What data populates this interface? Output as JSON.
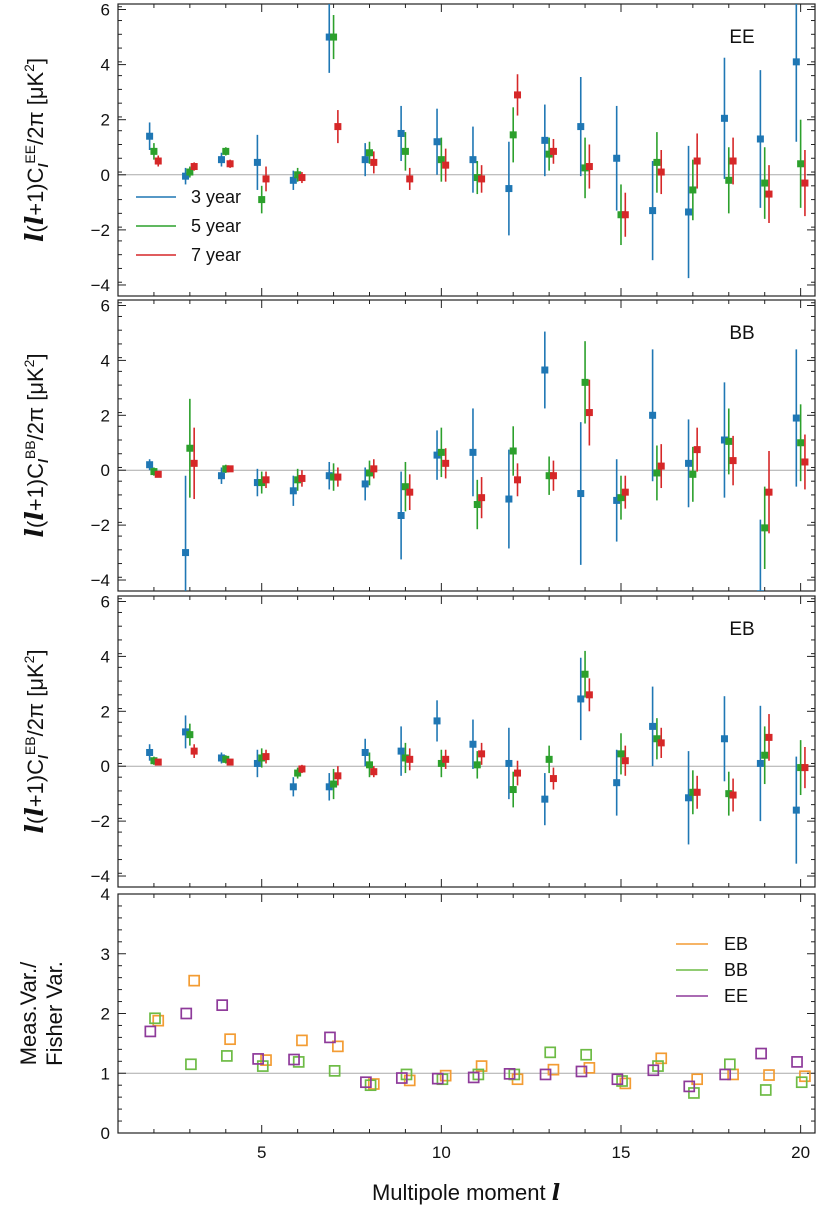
{
  "colors": {
    "y3": "#1f77b4",
    "y5": "#2ca02c",
    "y7": "#d62728",
    "EB": "#f39c33",
    "BB": "#6dbb45",
    "EE": "#8e3a9a",
    "zero_line": "#aaaaaa"
  },
  "xlabel_text": "Multipole moment",
  "xlabel_symbol": "l",
  "chart_data": [
    {
      "type": "scatter",
      "panel": "EE",
      "ylabel_parts": [
        "l",
        "(",
        "l",
        "+1)C",
        "l",
        "EE",
        "/2π [μK",
        "2",
        "]"
      ],
      "xlim": [
        1,
        20.4
      ],
      "ylim": [
        -4.4,
        6.2
      ],
      "yticks": [
        -4,
        -2,
        0,
        2,
        4,
        6
      ],
      "xticks": [
        5,
        10,
        15,
        20
      ],
      "grid": false,
      "legend_placement": "lower-left",
      "series": [
        {
          "name": "3 year",
          "color_key": "y3",
          "x": [
            2,
            3,
            4,
            5,
            6,
            7,
            8,
            9,
            10,
            11,
            12,
            13,
            14,
            15,
            16,
            17,
            18,
            19,
            20
          ],
          "y": [
            1.4,
            -0.05,
            0.55,
            0.45,
            -0.2,
            5.0,
            0.55,
            1.5,
            1.2,
            0.55,
            -0.5,
            1.25,
            1.75,
            0.6,
            -1.3,
            -1.35,
            2.05,
            1.3,
            4.1
          ],
          "err": [
            0.5,
            0.3,
            0.25,
            1.0,
            0.35,
            1.3,
            0.6,
            1.0,
            1.2,
            1.2,
            1.7,
            1.3,
            1.8,
            1.9,
            1.8,
            2.4,
            2.2,
            2.5,
            2.9
          ]
        },
        {
          "name": "5 year",
          "color_key": "y5",
          "x": [
            2,
            3,
            4,
            5,
            6,
            7,
            8,
            9,
            10,
            11,
            12,
            13,
            14,
            15,
            16,
            17,
            18,
            19,
            20
          ],
          "y": [
            0.85,
            0.1,
            0.85,
            -0.9,
            0.0,
            5.0,
            0.8,
            0.85,
            0.55,
            -0.1,
            1.45,
            0.75,
            0.25,
            -1.45,
            0.45,
            -0.55,
            -0.2,
            -0.3,
            0.4
          ],
          "err": [
            0.3,
            0.2,
            0.15,
            0.5,
            0.25,
            0.8,
            0.4,
            0.7,
            0.8,
            0.6,
            1.0,
            0.6,
            1.1,
            1.1,
            1.1,
            1.1,
            1.2,
            1.3,
            1.6
          ]
        },
        {
          "name": "7 year",
          "color_key": "y7",
          "x": [
            2,
            3,
            4,
            5,
            6,
            7,
            8,
            9,
            10,
            11,
            12,
            13,
            14,
            15,
            16,
            17,
            18,
            19,
            20
          ],
          "y": [
            0.5,
            0.3,
            0.4,
            -0.15,
            -0.1,
            1.75,
            0.45,
            -0.15,
            0.35,
            -0.15,
            2.9,
            0.85,
            0.3,
            -1.45,
            0.1,
            0.5,
            0.5,
            -0.7,
            -0.3
          ],
          "err": [
            0.2,
            0.15,
            0.15,
            0.45,
            0.2,
            0.6,
            0.4,
            0.4,
            0.6,
            0.5,
            0.75,
            0.45,
            0.8,
            0.8,
            0.8,
            1.0,
            0.85,
            1.05,
            1.2
          ]
        }
      ],
      "panel_label": "EE"
    },
    {
      "type": "scatter",
      "panel": "BB",
      "ylabel_parts": [
        "l",
        "(",
        "l",
        "+1)C",
        "l",
        "BB",
        "/2π [μK",
        "2",
        "]"
      ],
      "xlim": [
        1,
        20.4
      ],
      "ylim": [
        -4.4,
        6.2
      ],
      "yticks": [
        -4,
        -2,
        0,
        2,
        4,
        6
      ],
      "xticks": [
        5,
        10,
        15,
        20
      ],
      "grid": false,
      "series": [
        {
          "name": "3 year",
          "color_key": "y3",
          "x": [
            2,
            3,
            4,
            5,
            6,
            7,
            8,
            9,
            10,
            11,
            12,
            13,
            14,
            15,
            16,
            17,
            18,
            19,
            20
          ],
          "y": [
            0.2,
            -3.0,
            -0.2,
            -0.45,
            -0.75,
            -0.2,
            -0.5,
            -1.65,
            0.55,
            0.65,
            -1.05,
            3.65,
            -0.85,
            -1.1,
            2.0,
            0.25,
            1.1,
            -4.5,
            1.9
          ],
          "err": [
            0.2,
            2.8,
            0.3,
            0.5,
            0.55,
            0.5,
            0.6,
            1.6,
            0.9,
            1.6,
            1.8,
            1.4,
            2.6,
            1.5,
            2.4,
            1.6,
            2.1,
            2.7,
            2.5
          ]
        },
        {
          "name": "5 year",
          "color_key": "y5",
          "x": [
            2,
            3,
            4,
            5,
            6,
            7,
            8,
            9,
            10,
            11,
            12,
            13,
            14,
            15,
            16,
            17,
            18,
            19,
            20
          ],
          "y": [
            -0.05,
            0.8,
            0.05,
            -0.45,
            -0.35,
            -0.25,
            -0.1,
            -0.6,
            0.65,
            -1.25,
            0.7,
            -0.2,
            3.2,
            -1.0,
            -0.1,
            -0.15,
            1.05,
            -2.1,
            1.0
          ],
          "err": [
            0.15,
            1.8,
            0.15,
            0.4,
            0.4,
            0.5,
            0.45,
            0.9,
            0.9,
            0.9,
            0.9,
            0.7,
            1.5,
            0.8,
            1.0,
            1.0,
            1.2,
            1.5,
            1.4
          ]
        },
        {
          "name": "7 year",
          "color_key": "y7",
          "x": [
            2,
            3,
            4,
            5,
            6,
            7,
            8,
            9,
            10,
            11,
            12,
            13,
            14,
            15,
            16,
            17,
            18,
            19,
            20
          ],
          "y": [
            -0.15,
            0.25,
            0.05,
            -0.35,
            -0.3,
            -0.25,
            0.05,
            -0.8,
            0.25,
            -1.0,
            -0.35,
            -0.2,
            2.1,
            -0.8,
            0.15,
            0.75,
            0.35,
            -0.8,
            0.3
          ],
          "err": [
            0.1,
            1.3,
            0.1,
            0.3,
            0.3,
            0.35,
            0.35,
            0.65,
            0.55,
            0.75,
            0.6,
            0.55,
            1.2,
            0.6,
            0.8,
            0.8,
            0.9,
            1.5,
            1.0
          ]
        }
      ],
      "panel_label": "BB"
    },
    {
      "type": "scatter",
      "panel": "EB",
      "ylabel_parts": [
        "l",
        "(",
        "l",
        "+1)C",
        "l",
        "EB",
        "/2π [μK",
        "2",
        "]"
      ],
      "xlim": [
        1,
        20.4
      ],
      "ylim": [
        -4.4,
        6.2
      ],
      "yticks": [
        -4,
        -2,
        0,
        2,
        4,
        6
      ],
      "xticks": [
        5,
        10,
        15,
        20
      ],
      "grid": false,
      "series": [
        {
          "name": "3 year",
          "color_key": "y3",
          "x": [
            2,
            3,
            4,
            5,
            6,
            7,
            8,
            9,
            10,
            11,
            12,
            13,
            14,
            15,
            16,
            17,
            18,
            19,
            20
          ],
          "y": [
            0.5,
            1.25,
            0.3,
            0.1,
            -0.75,
            -0.75,
            0.5,
            0.55,
            1.65,
            0.8,
            0.1,
            -1.2,
            2.45,
            -0.6,
            1.45,
            -1.15,
            1.0,
            0.1,
            -1.6
          ],
          "err": [
            0.3,
            0.6,
            0.2,
            0.5,
            0.35,
            0.5,
            0.5,
            0.9,
            0.75,
            0.9,
            1.3,
            0.95,
            1.5,
            1.2,
            1.45,
            1.7,
            1.55,
            2.1,
            1.95
          ]
        },
        {
          "name": "5 year",
          "color_key": "y5",
          "x": [
            2,
            3,
            4,
            5,
            6,
            7,
            8,
            9,
            10,
            11,
            12,
            13,
            14,
            15,
            16,
            17,
            18,
            19,
            20
          ],
          "y": [
            0.2,
            1.15,
            0.25,
            0.3,
            -0.25,
            -0.65,
            0.05,
            0.3,
            0.1,
            0.05,
            -0.85,
            0.25,
            3.35,
            0.45,
            1.0,
            -0.95,
            -1.0,
            0.4,
            -0.05
          ],
          "err": [
            0.15,
            0.4,
            0.15,
            0.35,
            0.2,
            0.55,
            0.45,
            0.55,
            0.5,
            0.5,
            0.65,
            0.5,
            0.85,
            0.75,
            0.75,
            0.8,
            0.8,
            1.05,
            1.0
          ]
        },
        {
          "name": "7 year",
          "color_key": "y7",
          "x": [
            2,
            3,
            4,
            5,
            6,
            7,
            8,
            9,
            10,
            11,
            12,
            13,
            14,
            15,
            16,
            17,
            18,
            19,
            20
          ],
          "y": [
            0.15,
            0.55,
            0.15,
            0.35,
            -0.1,
            -0.35,
            -0.2,
            0.25,
            0.25,
            0.45,
            -0.25,
            -0.45,
            2.6,
            0.2,
            0.85,
            -0.95,
            -1.05,
            1.05,
            -0.05
          ],
          "err": [
            0.1,
            0.25,
            0.1,
            0.25,
            0.15,
            0.35,
            0.2,
            0.4,
            0.35,
            0.4,
            0.45,
            0.4,
            0.6,
            0.55,
            0.55,
            0.6,
            0.6,
            0.85,
            0.75
          ]
        }
      ],
      "panel_label": "EB"
    },
    {
      "type": "scatter",
      "panel": "ratio",
      "ylabel_lines": [
        "Meas.Var./",
        "Fisher Var."
      ],
      "xlim": [
        1,
        20.4
      ],
      "ylim": [
        0,
        4
      ],
      "yticks": [
        0,
        1,
        2,
        3,
        4
      ],
      "xticks": [
        5,
        10,
        15,
        20
      ],
      "grid": false,
      "legend_placement": "top-right",
      "series": [
        {
          "name": "EB",
          "color_key": "EB",
          "x": [
            2,
            3,
            4,
            5,
            6,
            7,
            8,
            9,
            10,
            11,
            12,
            13,
            14,
            15,
            16,
            17,
            18,
            19,
            20
          ],
          "y": [
            1.88,
            2.55,
            1.57,
            1.22,
            1.55,
            1.45,
            0.82,
            0.88,
            0.96,
            1.12,
            0.9,
            1.06,
            1.09,
            0.83,
            1.25,
            0.9,
            0.98,
            0.97,
            0.95
          ]
        },
        {
          "name": "BB",
          "color_key": "BB",
          "x": [
            2,
            3,
            4,
            5,
            6,
            7,
            8,
            9,
            10,
            11,
            12,
            13,
            14,
            15,
            16,
            17,
            18,
            19,
            20
          ],
          "y": [
            1.92,
            1.15,
            1.29,
            1.12,
            1.19,
            1.04,
            0.8,
            0.98,
            0.9,
            0.98,
            0.98,
            1.35,
            1.31,
            0.87,
            1.12,
            0.67,
            1.15,
            0.72,
            0.85
          ]
        },
        {
          "name": "EE",
          "color_key": "EE",
          "x": [
            2,
            3,
            4,
            5,
            6,
            7,
            8,
            9,
            10,
            11,
            12,
            13,
            14,
            15,
            16,
            17,
            18,
            19,
            20
          ],
          "y": [
            1.7,
            2.0,
            2.14,
            1.24,
            1.23,
            1.6,
            0.85,
            0.92,
            0.91,
            0.93,
            0.99,
            0.98,
            1.03,
            0.9,
            1.05,
            0.78,
            0.98,
            1.33,
            1.19
          ]
        }
      ]
    }
  ]
}
